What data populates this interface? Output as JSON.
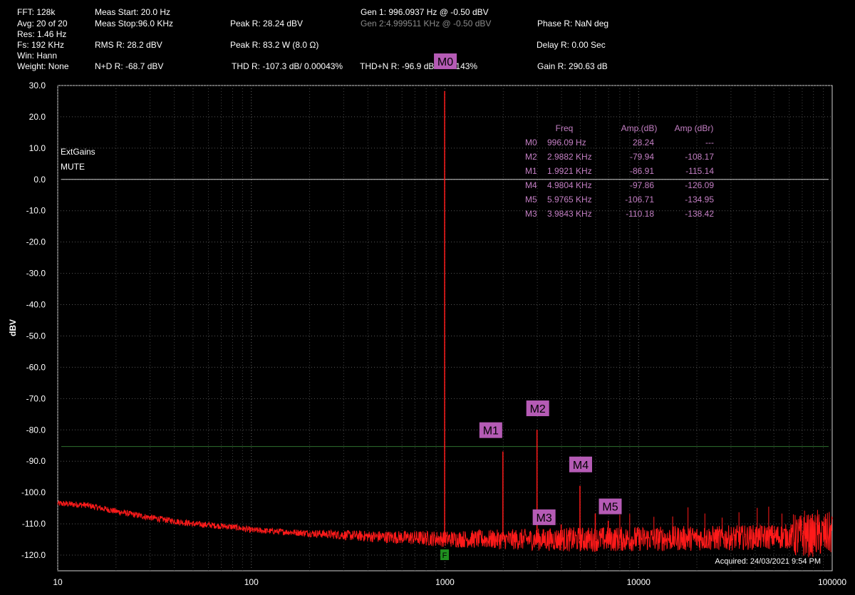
{
  "header": {
    "fft": "FFT: 128k",
    "avg": "Avg: 20 of 20",
    "res": "Res: 1.46 Hz",
    "fs": "Fs: 192 KHz",
    "win": "Win: Hann",
    "weight": "Weight: None",
    "meas_start": "Meas Start: 20.0 Hz",
    "meas_stop": "Meas Stop:96.0 KHz",
    "rms": "RMS R: 28.2 dBV",
    "nd": "N+D R: -68.7 dBV",
    "peak_dbv": "Peak R: 28.24 dBV",
    "peak_w": "Peak R: 83.2 W (8.0 Ω)",
    "thd": "THD R: -107.3 dB/ 0.00043%",
    "gen1": "Gen 1: 996.0937 Hz @ -0.50  dBV",
    "gen2": "Gen 2:4.999511 KHz @ -0.50  dBV",
    "thdn": "THD+N R: -96.9 dB/ 0.00143%",
    "phase": "Phase R: NaN deg",
    "delay": "Delay R: 0.00 Sec",
    "gain": "Gain R: 290.63 dB"
  },
  "chart_data": {
    "type": "line",
    "xscale": "log",
    "xlim": [
      10,
      100000
    ],
    "ylim": [
      -125,
      30
    ],
    "ylabel": "dBV",
    "x_ticks": [
      10,
      100,
      1000,
      10000,
      100000
    ],
    "x_tick_labels": [
      "10",
      "100",
      "1000",
      "10000",
      "100000"
    ],
    "y_ticks": [
      30,
      20,
      10,
      0,
      -10,
      -20,
      -30,
      -40,
      -50,
      -60,
      -70,
      -80,
      -90,
      -100,
      -110,
      -120
    ],
    "y_tick_labels": [
      "30.0",
      "20.0",
      "10.0",
      "0.0",
      "-10.0",
      "-20.0",
      "-30.0",
      "-40.0",
      "-50.0",
      "-60.0",
      "-70.0",
      "-80.0",
      "-90.0",
      "-100.0",
      "-110.0",
      "-120.0"
    ],
    "grid": true,
    "reference_lines": [
      {
        "y": 0,
        "color": "#cccccc"
      },
      {
        "y": -85.3,
        "color": "#2f6f2f"
      }
    ],
    "noise_floor": {
      "x": [
        10,
        14,
        20,
        30,
        50,
        80,
        100,
        200,
        400,
        700,
        1000,
        2000,
        5000,
        10000,
        30000,
        60000,
        90000,
        100000
      ],
      "y": [
        -103.5,
        -104,
        -106,
        -108,
        -110,
        -111,
        -112,
        -113,
        -114,
        -114.5,
        -114.8,
        -115,
        -115,
        -114.8,
        -114.5,
        -114,
        -113.5,
        -113
      ]
    },
    "peaks": [
      {
        "x": 996.09,
        "y": 28.24
      },
      {
        "x": 1992.1,
        "y": -86.91
      },
      {
        "x": 2988.2,
        "y": -79.94
      },
      {
        "x": 3984.3,
        "y": -110.18
      },
      {
        "x": 4980.4,
        "y": -97.86
      },
      {
        "x": 5976.5,
        "y": -106.71
      },
      {
        "x": 6972.6,
        "y": -109
      }
    ],
    "series_color": "#ff1a1a",
    "markers": [
      {
        "label": "M0",
        "x": 996.09,
        "y": 28.24
      },
      {
        "label": "M1",
        "x": 1992.1,
        "y": -86.91
      },
      {
        "label": "M2",
        "x": 2988.2,
        "y": -79.94
      },
      {
        "label": "M3",
        "x": 3984.3,
        "y": -110.18
      },
      {
        "label": "M4",
        "x": 4980.4,
        "y": -97.86
      },
      {
        "label": "M5",
        "x": 5976.5,
        "y": -106.71
      }
    ],
    "marker_color": "#b55bb5",
    "f_marker": {
      "label": "F",
      "x": 996.09,
      "color": "#1f8f1f"
    },
    "marker_table": {
      "headers": [
        "Freq",
        "Amp.(dB)",
        "Amp (dBr)"
      ],
      "rows": [
        [
          "M0",
          "996.09 Hz",
          "28.24",
          "---"
        ],
        [
          "M2",
          "2.9882 KHz",
          "-79.94",
          "-108.17"
        ],
        [
          "M1",
          "1.9921 KHz",
          "-86.91",
          "-115.14"
        ],
        [
          "M4",
          "4.9804 KHz",
          "-97.86",
          "-126.09"
        ],
        [
          "M5",
          "5.9765 KHz",
          "-106.71",
          "-134.95"
        ],
        [
          "M3",
          "3.9843 KHz",
          "-110.18",
          "-138.42"
        ]
      ],
      "color": "#c47fc4"
    },
    "annotations": [
      "ExtGains",
      "MUTE"
    ],
    "acquired": "Acquired: 24/03/2021  9:54 PM"
  }
}
